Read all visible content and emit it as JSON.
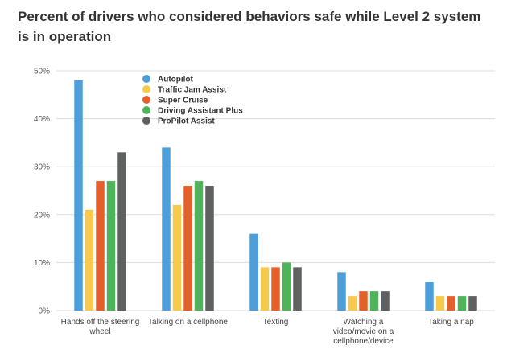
{
  "chart_data": {
    "type": "bar",
    "title": "Percent of drivers who considered behaviors safe while Level 2 system is in operation",
    "xlabel": "",
    "ylabel": "",
    "ylim": [
      0,
      50
    ],
    "yticks": [
      "0%",
      "10%",
      "20%",
      "30%",
      "40%",
      "50%"
    ],
    "grid": true,
    "legend_position": "top-left",
    "categories": [
      [
        "Hands off the steering",
        "wheel"
      ],
      [
        "Talking on a cellphone"
      ],
      [
        "Texting"
      ],
      [
        "Watching a",
        "video/movie on a",
        "cellphone/device"
      ],
      [
        "Taking a nap"
      ]
    ],
    "series": [
      {
        "name": "Autopilot",
        "color": "#4e9fd9",
        "values": [
          48,
          34,
          16,
          8,
          6
        ]
      },
      {
        "name": "Traffic Jam Assist",
        "color": "#f7c94c",
        "values": [
          21,
          22,
          9,
          3,
          3
        ]
      },
      {
        "name": "Super Cruise",
        "color": "#e3602b",
        "values": [
          27,
          26,
          9,
          4,
          3
        ]
      },
      {
        "name": "Driving Assistant Plus",
        "color": "#4fb35a",
        "values": [
          27,
          27,
          10,
          4,
          3
        ]
      },
      {
        "name": "ProPilot Assist",
        "color": "#5f6060",
        "values": [
          33,
          26,
          9,
          4,
          3
        ]
      }
    ]
  }
}
